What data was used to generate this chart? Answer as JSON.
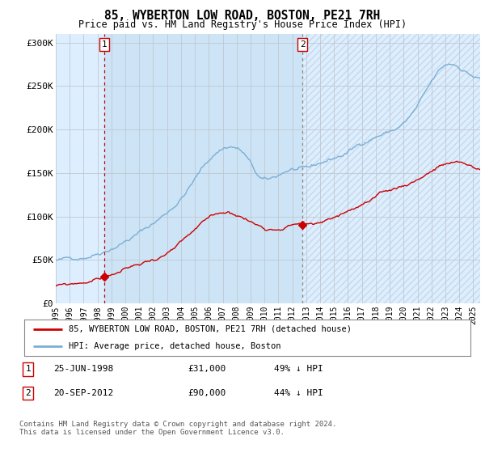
{
  "title": "85, WYBERTON LOW ROAD, BOSTON, PE21 7RH",
  "subtitle": "Price paid vs. HM Land Registry's House Price Index (HPI)",
  "ylim": [
    0,
    310000
  ],
  "yticks": [
    0,
    50000,
    100000,
    150000,
    200000,
    250000,
    300000
  ],
  "ytick_labels": [
    "£0",
    "£50K",
    "£100K",
    "£150K",
    "£200K",
    "£250K",
    "£300K"
  ],
  "hpi_color": "#7bafd4",
  "price_color": "#cc0000",
  "vline1_color": "#cc0000",
  "vline2_color": "#888888",
  "background_color": "#ddeeff",
  "shade_color": "#cce0f0",
  "sale1": {
    "date_num": 1998.48,
    "price": 31000,
    "label": "1"
  },
  "sale2": {
    "date_num": 2012.72,
    "price": 90000,
    "label": "2"
  },
  "legend_line1": "85, WYBERTON LOW ROAD, BOSTON, PE21 7RH (detached house)",
  "legend_line2": "HPI: Average price, detached house, Boston",
  "footnote": "Contains HM Land Registry data © Crown copyright and database right 2024.\nThis data is licensed under the Open Government Licence v3.0.",
  "xmin": 1995.0,
  "xmax": 2025.5
}
